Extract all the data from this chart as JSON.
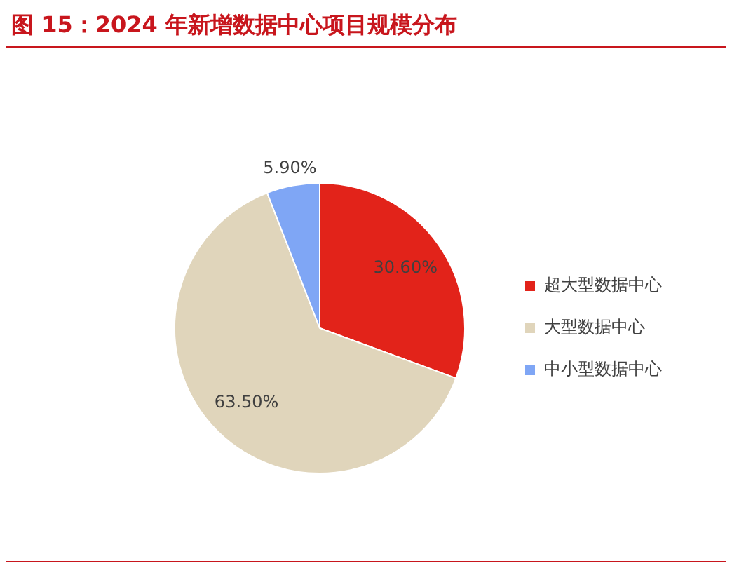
{
  "chart_data": {
    "type": "pie",
    "title": "图 15：2024 年新增数据中心项目规模分布",
    "categories": [
      "超大型数据中心",
      "大型数据中心",
      "中小型数据中心"
    ],
    "values": [
      30.6,
      63.5,
      5.9
    ],
    "colors": [
      "#e2231a",
      "#e0d5bb",
      "#7fa6f5"
    ],
    "value_labels": [
      "30.60%",
      "63.50%",
      "5.90%"
    ],
    "legend": "right"
  }
}
